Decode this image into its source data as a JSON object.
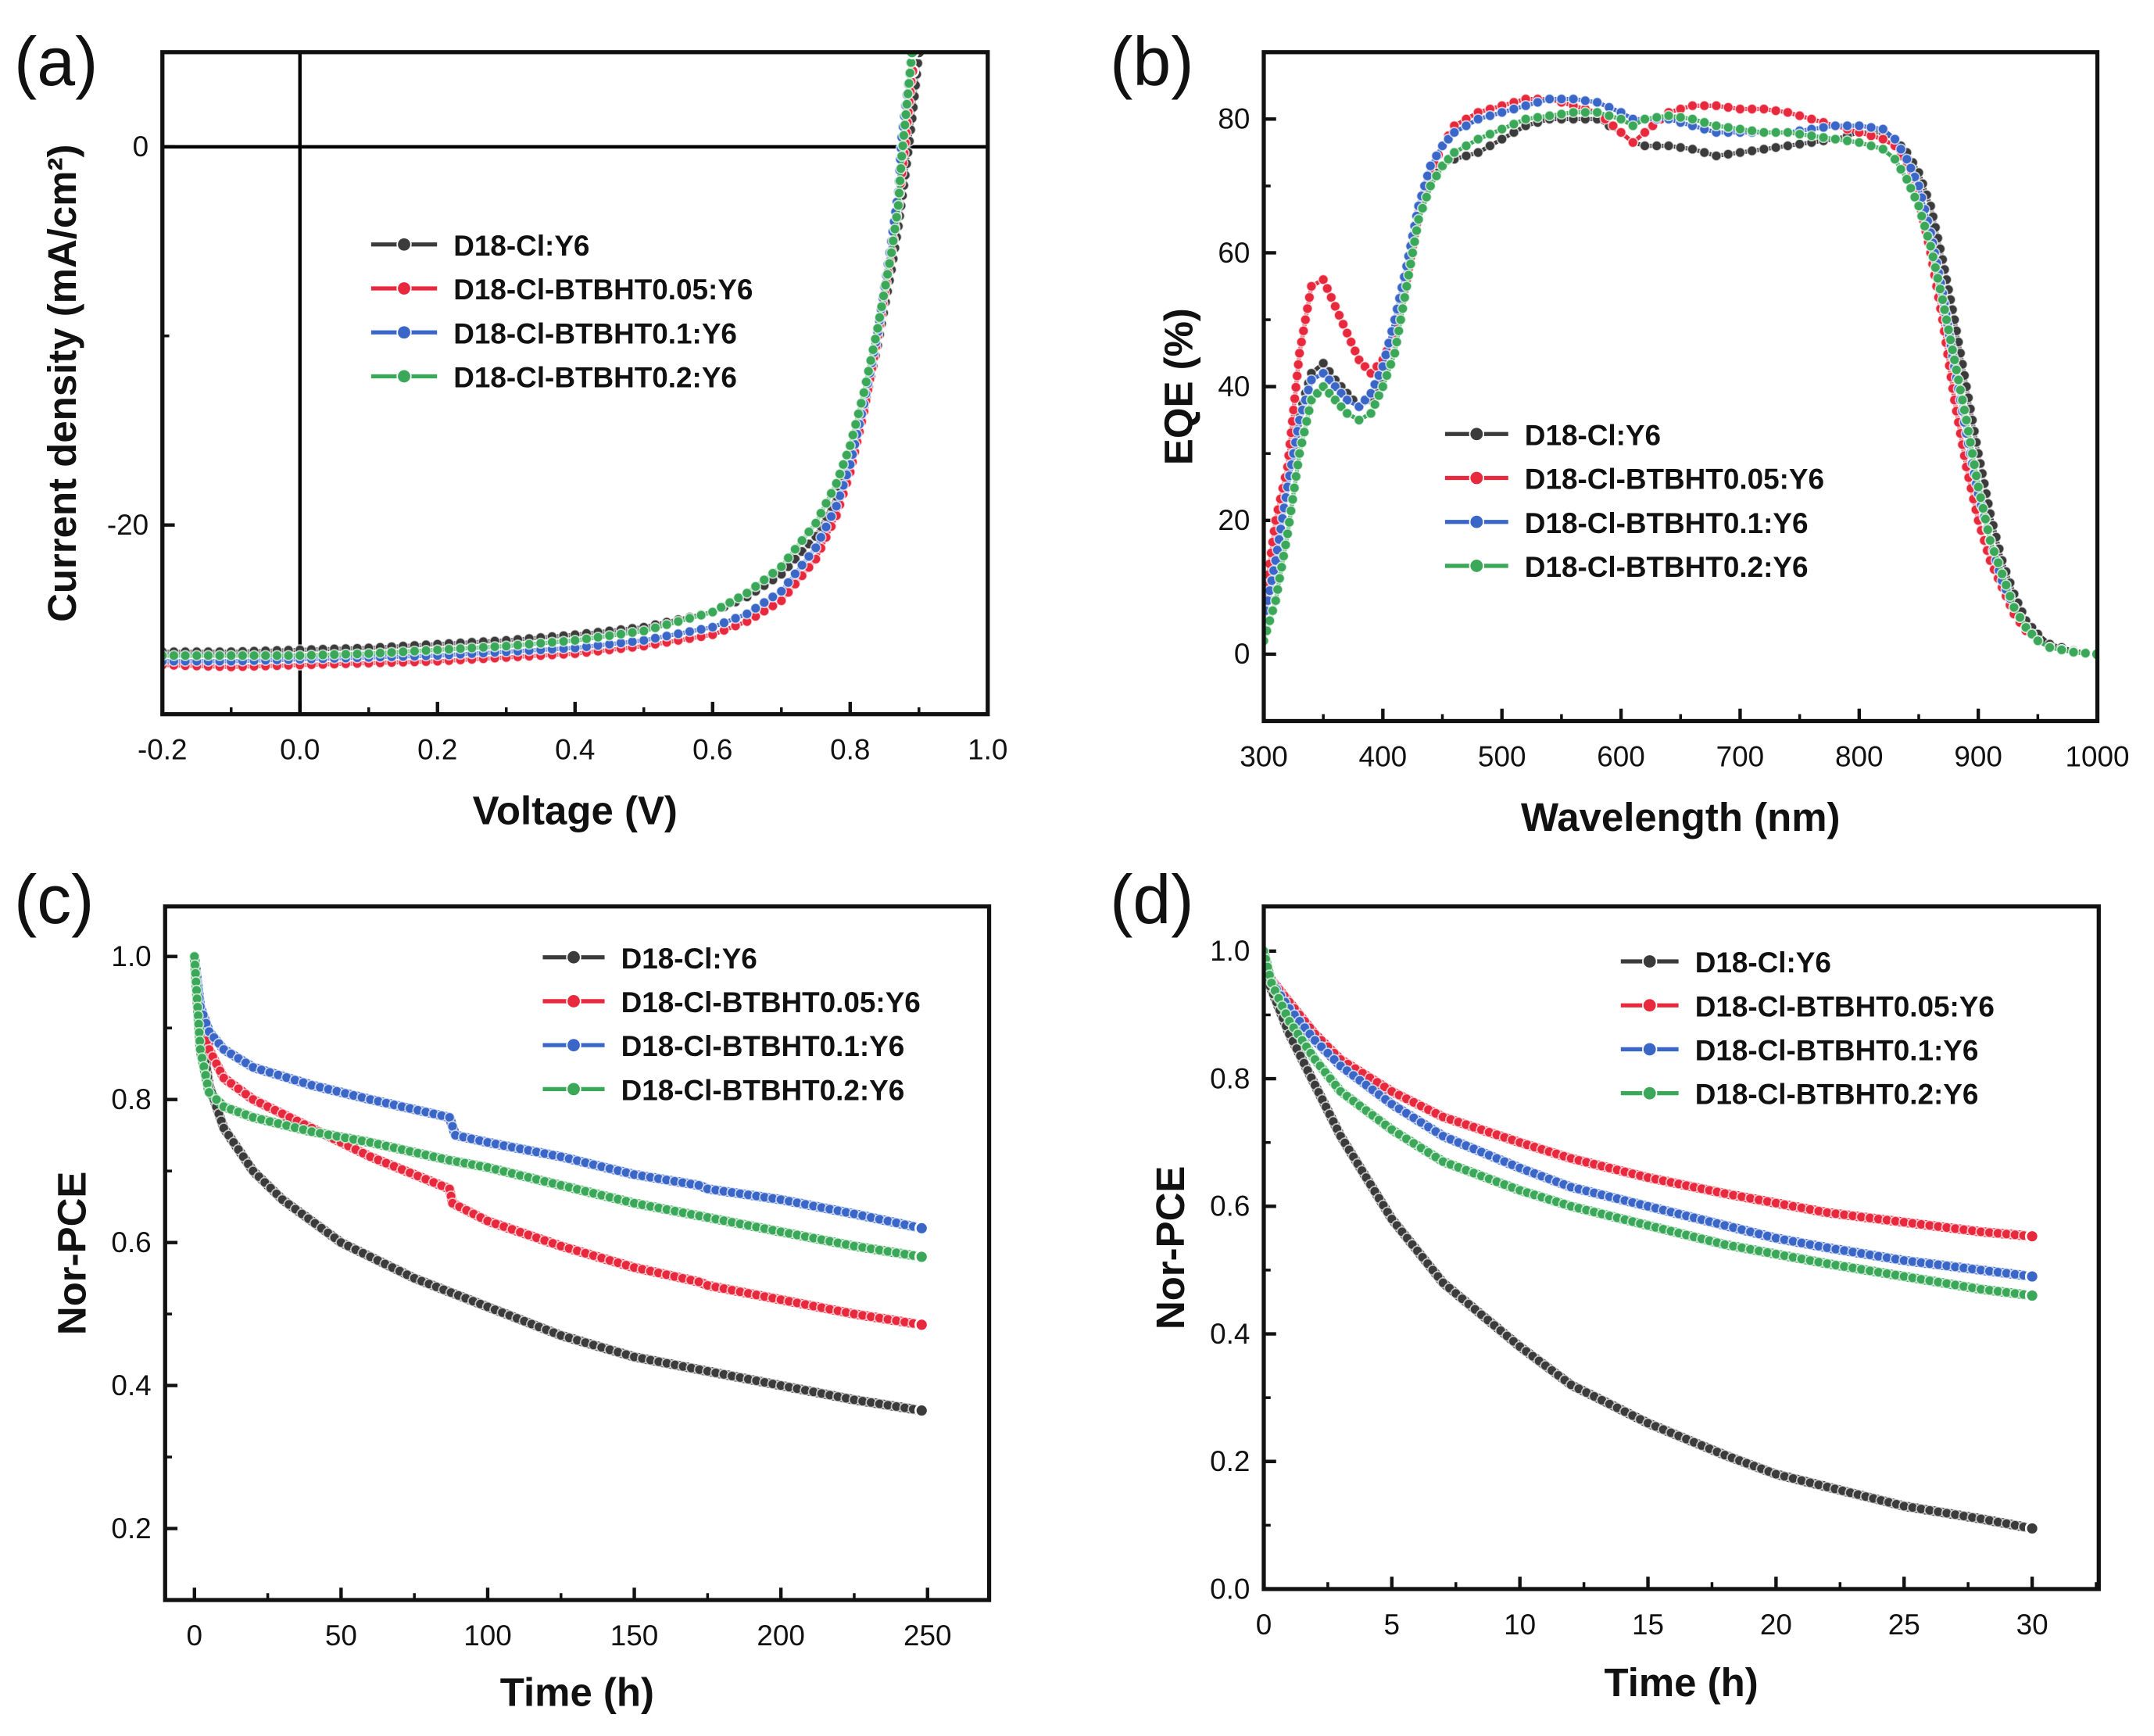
{
  "colors": {
    "D18-Cl:Y6": "#3b3b3b",
    "D18-Cl-BTBHT0.05:Y6": "#e8283c",
    "D18-Cl-BTBHT0.1:Y6": "#3a66c8",
    "D18-Cl-BTBHT0.2:Y6": "#3aa858"
  },
  "chart_data": [
    {
      "panel_label": "(a)",
      "type": "line",
      "xlabel": "Voltage (V)",
      "ylabel": "Current density (mA/cm²)",
      "xlim": [
        -0.2,
        1.0
      ],
      "ylim": [
        -30,
        5
      ],
      "xticks": [
        {
          "v": -0.2,
          "label": "-0.2"
        },
        {
          "v": 0,
          "label": "0.0"
        },
        {
          "v": 0.2,
          "label": "0.2"
        },
        {
          "v": 0.4,
          "label": "0.4"
        },
        {
          "v": 0.6,
          "label": "0.6"
        },
        {
          "v": 0.8,
          "label": "0.8"
        },
        {
          "v": 1.0,
          "label": "1.0"
        }
      ],
      "yticks": [
        {
          "v": 0,
          "label": "0"
        },
        {
          "v": -20,
          "label": "-20"
        }
      ],
      "reference_lines": {
        "x": 0,
        "y": 0
      },
      "legend_position": "center",
      "series": [
        {
          "name": "D18-Cl:Y6",
          "x": [
            -0.2,
            -0.1,
            0,
            0.1,
            0.2,
            0.3,
            0.4,
            0.5,
            0.6,
            0.65,
            0.7,
            0.75,
            0.78,
            0.8,
            0.82,
            0.84,
            0.86,
            0.87,
            0.88,
            0.89,
            0.9
          ],
          "y": [
            -26.7,
            -26.7,
            -26.6,
            -26.5,
            -26.3,
            -26.1,
            -25.8,
            -25.4,
            -24.6,
            -23.8,
            -22.6,
            -20.6,
            -18.5,
            -16.5,
            -13.8,
            -10.5,
            -6.5,
            -4.2,
            -1.5,
            1.5,
            5
          ]
        },
        {
          "name": "D18-Cl-BTBHT0.05:Y6",
          "x": [
            -0.2,
            -0.1,
            0,
            0.1,
            0.2,
            0.3,
            0.4,
            0.5,
            0.6,
            0.65,
            0.7,
            0.75,
            0.78,
            0.8,
            0.82,
            0.84,
            0.86,
            0.87,
            0.88,
            0.89
          ],
          "y": [
            -27.4,
            -27.5,
            -27.4,
            -27.3,
            -27.2,
            -27.0,
            -26.8,
            -26.4,
            -25.8,
            -25.1,
            -24.0,
            -21.8,
            -19.5,
            -17.2,
            -14.0,
            -10.0,
            -5.5,
            -3.0,
            0.2,
            4
          ]
        },
        {
          "name": "D18-Cl-BTBHT0.1:Y6",
          "x": [
            -0.2,
            -0.1,
            0,
            0.1,
            0.2,
            0.3,
            0.4,
            0.5,
            0.6,
            0.65,
            0.7,
            0.75,
            0.78,
            0.8,
            0.82,
            0.84,
            0.86,
            0.87,
            0.875,
            0.89
          ],
          "y": [
            -27.2,
            -27.2,
            -27.1,
            -27.0,
            -26.9,
            -26.7,
            -26.5,
            -26.1,
            -25.4,
            -24.7,
            -23.5,
            -21.2,
            -19.0,
            -16.8,
            -13.6,
            -9.8,
            -5.0,
            -2.4,
            0.5,
            5
          ]
        },
        {
          "name": "D18-Cl-BTBHT0.2:Y6",
          "x": [
            -0.2,
            -0.1,
            0,
            0.1,
            0.2,
            0.3,
            0.4,
            0.5,
            0.6,
            0.65,
            0.7,
            0.75,
            0.78,
            0.8,
            0.82,
            0.84,
            0.86,
            0.87,
            0.875,
            0.89
          ],
          "y": [
            -26.9,
            -26.9,
            -26.9,
            -26.8,
            -26.6,
            -26.4,
            -26.1,
            -25.6,
            -24.6,
            -23.6,
            -22.2,
            -19.9,
            -17.8,
            -15.8,
            -13.0,
            -9.6,
            -5.6,
            -3.1,
            -0.5,
            5
          ]
        }
      ]
    },
    {
      "panel_label": "(b)",
      "type": "line",
      "xlabel": "Wavelength (nm)",
      "ylabel": "EQE (%)",
      "xlim": [
        300,
        1000
      ],
      "ylim": [
        -10,
        90
      ],
      "xticks": [
        {
          "v": 300,
          "label": "300"
        },
        {
          "v": 400,
          "label": "400"
        },
        {
          "v": 500,
          "label": "500"
        },
        {
          "v": 600,
          "label": "600"
        },
        {
          "v": 700,
          "label": "700"
        },
        {
          "v": 800,
          "label": "800"
        },
        {
          "v": 900,
          "label": "900"
        },
        {
          "v": 1000,
          "label": "1000"
        }
      ],
      "yticks": [
        {
          "v": 0,
          "label": "0"
        },
        {
          "v": 20,
          "label": "20"
        },
        {
          "v": 40,
          "label": "40"
        },
        {
          "v": 60,
          "label": "60"
        },
        {
          "v": 80,
          "label": "80"
        }
      ],
      "legend_position": "center",
      "x": [
        300,
        310,
        320,
        330,
        340,
        350,
        360,
        370,
        380,
        390,
        400,
        410,
        420,
        430,
        440,
        450,
        460,
        480,
        500,
        520,
        540,
        560,
        580,
        600,
        610,
        620,
        640,
        660,
        680,
        700,
        720,
        740,
        760,
        780,
        800,
        820,
        830,
        840,
        850,
        860,
        870,
        880,
        890,
        900,
        910,
        920,
        930,
        940,
        950,
        960,
        980,
        1000
      ],
      "series": [
        {
          "name": "D18-Cl:Y6",
          "y": [
            5,
            15,
            25,
            36,
            42,
            43.5,
            41,
            39,
            37,
            38,
            42,
            48,
            58,
            66,
            71,
            73,
            74,
            75,
            77,
            79,
            80,
            80,
            80,
            78,
            76.5,
            76,
            76,
            75.5,
            74.5,
            75,
            75.5,
            76,
            76.5,
            77,
            78,
            78,
            77,
            75,
            72,
            67,
            59,
            50,
            40,
            30,
            21,
            14,
            9,
            5,
            3,
            1.5,
            0.5,
            0
          ]
        },
        {
          "name": "D18-Cl-BTBHT0.05:Y6",
          "y": [
            7,
            20,
            28,
            45,
            55,
            56,
            52,
            48,
            44,
            42,
            44,
            48,
            56,
            66,
            72,
            76,
            79,
            81,
            82,
            83,
            83,
            82,
            81,
            78,
            76.5,
            78,
            81,
            82,
            82,
            81.5,
            81.5,
            81,
            80,
            79,
            78,
            77,
            76,
            73,
            68,
            60,
            50,
            38,
            28,
            20,
            14,
            10,
            6,
            3.5,
            2,
            1,
            0.3,
            0
          ]
        },
        {
          "name": "D18-Cl-BTBHT0.1:Y6",
          "y": [
            5,
            14,
            25,
            35,
            41,
            42,
            40,
            38,
            37,
            39,
            43,
            50,
            58,
            67,
            73,
            76,
            78,
            80,
            81,
            82,
            83,
            83,
            82.5,
            81,
            80,
            80,
            80,
            79,
            78,
            78,
            78,
            78,
            78.5,
            79,
            79,
            78.5,
            77,
            74,
            70,
            63,
            54,
            43,
            33,
            24,
            17,
            11,
            7,
            4,
            2,
            1,
            0.3,
            0
          ]
        },
        {
          "name": "D18-Cl-BTBHT0.2:Y6",
          "y": [
            2,
            8,
            18,
            30,
            38,
            40,
            38,
            36,
            35,
            36,
            40,
            45,
            55,
            65,
            70,
            73,
            75,
            77,
            78.5,
            80,
            80.5,
            81,
            81,
            80,
            79,
            80,
            80.5,
            80,
            79,
            78.5,
            78,
            78,
            77.5,
            77,
            76.5,
            75.5,
            74,
            71,
            67,
            61,
            53,
            44,
            35,
            25,
            17,
            12,
            7,
            4,
            2,
            1,
            0.3,
            0
          ]
        }
      ]
    },
    {
      "panel_label": "(c)",
      "type": "line",
      "xlabel": "Time (h)",
      "ylabel": "Nor-PCE",
      "xlim": [
        -10,
        271
      ],
      "ylim": [
        0.1,
        1.07
      ],
      "xticks": [
        {
          "v": 0,
          "label": "0"
        },
        {
          "v": 50,
          "label": "50"
        },
        {
          "v": 100,
          "label": "100"
        },
        {
          "v": 150,
          "label": "150"
        },
        {
          "v": 200,
          "label": "200"
        },
        {
          "v": 250,
          "label": "250"
        }
      ],
      "yticks": [
        {
          "v": 0.2,
          "label": "0.2"
        },
        {
          "v": 0.4,
          "label": "0.4"
        },
        {
          "v": 0.6,
          "label": "0.6"
        },
        {
          "v": 0.8,
          "label": "0.8"
        },
        {
          "v": 1.0,
          "label": "1.0"
        }
      ],
      "legend_position": "top-right",
      "series": [
        {
          "name": "D18-Cl:Y6",
          "x": [
            0,
            2,
            5,
            10,
            20,
            30,
            50,
            75,
            100,
            125,
            150,
            175,
            200,
            225,
            248
          ],
          "y": [
            1.0,
            0.9,
            0.82,
            0.76,
            0.7,
            0.66,
            0.6,
            0.55,
            0.51,
            0.47,
            0.44,
            0.42,
            0.4,
            0.38,
            0.365
          ]
        },
        {
          "name": "D18-Cl-BTBHT0.05:Y6",
          "x": [
            0,
            2,
            5,
            10,
            20,
            40,
            60,
            87,
            88,
            100,
            125,
            150,
            172,
            175,
            200,
            225,
            248
          ],
          "y": [
            1.0,
            0.92,
            0.87,
            0.83,
            0.8,
            0.76,
            0.72,
            0.675,
            0.655,
            0.63,
            0.595,
            0.565,
            0.545,
            0.54,
            0.52,
            0.5,
            0.485
          ]
        },
        {
          "name": "D18-Cl-BTBHT0.1:Y6",
          "x": [
            0,
            2,
            5,
            10,
            20,
            40,
            60,
            87,
            89,
            100,
            125,
            150,
            172,
            175,
            200,
            225,
            248
          ],
          "y": [
            1.0,
            0.93,
            0.895,
            0.87,
            0.845,
            0.82,
            0.8,
            0.775,
            0.75,
            0.74,
            0.72,
            0.695,
            0.68,
            0.675,
            0.66,
            0.64,
            0.62
          ]
        },
        {
          "name": "D18-Cl-BTBHT0.2:Y6",
          "x": [
            0,
            2,
            5,
            10,
            20,
            40,
            60,
            87,
            100,
            125,
            150,
            175,
            200,
            225,
            248
          ],
          "y": [
            1.0,
            0.87,
            0.81,
            0.79,
            0.775,
            0.755,
            0.74,
            0.715,
            0.705,
            0.68,
            0.655,
            0.635,
            0.615,
            0.595,
            0.58
          ]
        }
      ]
    },
    {
      "panel_label": "(d)",
      "type": "line",
      "xlabel": "Time (h)",
      "ylabel": "Nor-PCE",
      "xlim": [
        0,
        32.6
      ],
      "ylim": [
        0,
        1.07
      ],
      "xticks": [
        {
          "v": 0,
          "label": "0"
        },
        {
          "v": 5,
          "label": "5"
        },
        {
          "v": 10,
          "label": "10"
        },
        {
          "v": 15,
          "label": "15"
        },
        {
          "v": 20,
          "label": "20"
        },
        {
          "v": 25,
          "label": "25"
        },
        {
          "v": 30,
          "label": "30"
        }
      ],
      "yticks": [
        {
          "v": 0,
          "label": "0.0"
        },
        {
          "v": 0.2,
          "label": "0.2"
        },
        {
          "v": 0.4,
          "label": "0.4"
        },
        {
          "v": 0.6,
          "label": "0.6"
        },
        {
          "v": 0.8,
          "label": "0.8"
        },
        {
          "v": 1.0,
          "label": "1.0"
        }
      ],
      "legend_position": "top-right",
      "series": [
        {
          "name": "D18-Cl:Y6",
          "x": [
            0,
            1,
            2,
            3,
            5,
            7,
            10,
            12,
            15,
            18,
            20,
            22,
            25,
            28,
            30
          ],
          "y": [
            0.97,
            0.87,
            0.79,
            0.71,
            0.58,
            0.48,
            0.38,
            0.32,
            0.26,
            0.21,
            0.18,
            0.16,
            0.13,
            0.11,
            0.095
          ]
        },
        {
          "name": "D18-Cl-BTBHT0.05:Y6",
          "x": [
            0,
            1,
            2,
            3,
            5,
            7,
            10,
            12,
            15,
            18,
            20,
            22,
            25,
            28,
            30
          ],
          "y": [
            0.97,
            0.92,
            0.87,
            0.83,
            0.78,
            0.74,
            0.7,
            0.675,
            0.645,
            0.62,
            0.605,
            0.59,
            0.575,
            0.56,
            0.553
          ]
        },
        {
          "name": "D18-Cl-BTBHT0.1:Y6",
          "x": [
            0,
            1,
            2,
            3,
            5,
            7,
            10,
            12,
            15,
            18,
            20,
            22,
            25,
            28,
            30
          ],
          "y": [
            0.97,
            0.91,
            0.86,
            0.82,
            0.76,
            0.71,
            0.66,
            0.63,
            0.6,
            0.57,
            0.55,
            0.535,
            0.515,
            0.5,
            0.49
          ]
        },
        {
          "name": "D18-Cl-BTBHT0.2:Y6",
          "x": [
            0,
            0.3,
            1,
            2,
            3,
            5,
            7,
            10,
            12,
            15,
            18,
            20,
            22,
            25,
            28,
            30
          ],
          "y": [
            1.0,
            0.95,
            0.89,
            0.83,
            0.78,
            0.72,
            0.67,
            0.625,
            0.6,
            0.57,
            0.54,
            0.525,
            0.51,
            0.49,
            0.47,
            0.46
          ]
        }
      ]
    }
  ]
}
